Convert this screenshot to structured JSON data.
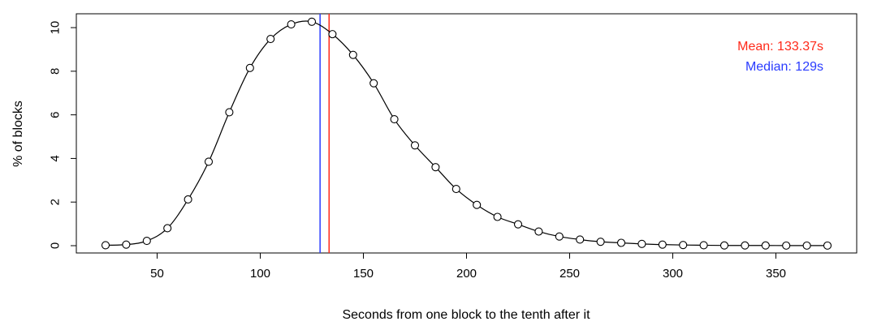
{
  "chart_data": {
    "type": "line",
    "title": "",
    "xlabel": "Seconds from one block to the tenth after it",
    "ylabel": "% of blocks",
    "xlim": [
      25,
      375
    ],
    "ylim": [
      0,
      10.3
    ],
    "x_ticks": [
      50,
      100,
      150,
      200,
      250,
      300,
      350
    ],
    "y_ticks": [
      0,
      2,
      4,
      6,
      8,
      10
    ],
    "grid": false,
    "legend_position": "top-right",
    "series": [
      {
        "x": [
          25,
          35,
          45,
          55,
          65,
          75,
          85,
          95,
          105,
          115,
          125,
          135,
          145,
          155,
          165,
          175,
          185,
          195,
          205,
          215,
          225,
          235,
          245,
          255,
          265,
          275,
          285,
          295,
          305,
          315,
          325,
          335,
          345,
          355,
          365,
          375
        ],
        "values": [
          0.02,
          0.05,
          0.22,
          0.8,
          2.12,
          3.85,
          6.12,
          8.15,
          9.48,
          10.15,
          10.27,
          9.7,
          8.75,
          7.45,
          5.8,
          4.6,
          3.6,
          2.6,
          1.87,
          1.32,
          0.98,
          0.65,
          0.42,
          0.28,
          0.18,
          0.13,
          0.08,
          0.05,
          0.03,
          0.02,
          0.01,
          0.01,
          0.01,
          0.005,
          0.005,
          0.005
        ],
        "color": "#000000",
        "marker": "open-circle"
      }
    ],
    "reference_lines": [
      {
        "label": "Mean: 133.37s",
        "x": 133.37,
        "color": "#ff2a1a"
      },
      {
        "label": "Median: 129s",
        "x": 129,
        "color": "#2a3cff"
      }
    ]
  }
}
